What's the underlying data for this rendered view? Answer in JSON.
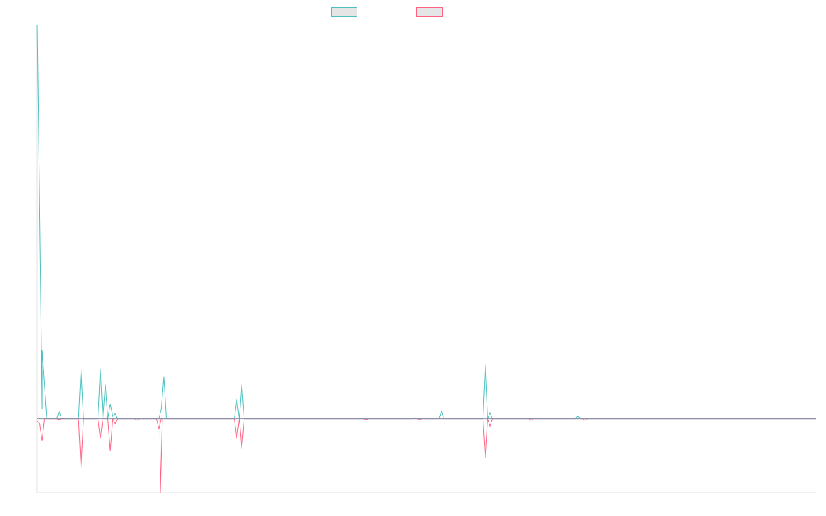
{
  "chart_data": {
    "type": "line",
    "title": "",
    "xlabel": "",
    "ylabel": "",
    "x_range": [
      0,
      160
    ],
    "ylim": [
      -15,
      80
    ],
    "grid": false,
    "legend_position": "top-center",
    "series": [
      {
        "color": "#4bc0c0",
        "points": [
          [
            0,
            80
          ],
          [
            1,
            2
          ],
          [
            1,
            14
          ],
          [
            2,
            0
          ],
          [
            4,
            0
          ],
          [
            4.5,
            1.5
          ],
          [
            5,
            0
          ],
          [
            8.5,
            0
          ],
          [
            9,
            10
          ],
          [
            9.5,
            0
          ],
          [
            12.5,
            0
          ],
          [
            13,
            10
          ],
          [
            13.5,
            0
          ],
          [
            14,
            7
          ],
          [
            14.5,
            0
          ],
          [
            15,
            3
          ],
          [
            15.5,
            0.5
          ],
          [
            16,
            1
          ],
          [
            16.5,
            0
          ],
          [
            25,
            0
          ],
          [
            25.5,
            2
          ],
          [
            26,
            8.5
          ],
          [
            26.5,
            0
          ],
          [
            40.5,
            0
          ],
          [
            41,
            4
          ],
          [
            41.5,
            0
          ],
          [
            42,
            7
          ],
          [
            42.5,
            0
          ],
          [
            77,
            0
          ],
          [
            77.5,
            0.2
          ],
          [
            78,
            0
          ],
          [
            82.5,
            0
          ],
          [
            83,
            1.5
          ],
          [
            83.5,
            0
          ],
          [
            91.5,
            0
          ],
          [
            92,
            11
          ],
          [
            92.5,
            0
          ],
          [
            93,
            1.2
          ],
          [
            93.5,
            0
          ],
          [
            110.5,
            0
          ],
          [
            111,
            0.6
          ],
          [
            111.5,
            0
          ],
          [
            160,
            0
          ]
        ]
      },
      {
        "color": "#ff6384",
        "points": [
          [
            0,
            -0.5
          ],
          [
            0.5,
            -1
          ],
          [
            1,
            -4.5
          ],
          [
            1.5,
            0
          ],
          [
            4,
            0
          ],
          [
            4.5,
            -0.2
          ],
          [
            5,
            0
          ],
          [
            8.5,
            0
          ],
          [
            9,
            -10
          ],
          [
            9.5,
            0
          ],
          [
            12.5,
            0
          ],
          [
            13,
            -4
          ],
          [
            13.5,
            0
          ],
          [
            14.5,
            0
          ],
          [
            15,
            -6.5
          ],
          [
            15.5,
            0
          ],
          [
            16,
            -1
          ],
          [
            16.5,
            0
          ],
          [
            20,
            0
          ],
          [
            20.5,
            -0.3
          ],
          [
            21,
            0
          ],
          [
            24.5,
            0
          ],
          [
            25,
            -2
          ],
          [
            25.5,
            0
          ],
          [
            25.2,
            0
          ],
          [
            25.3,
            -15
          ],
          [
            25.7,
            0
          ],
          [
            40.5,
            0
          ],
          [
            41,
            -4
          ],
          [
            41.5,
            0
          ],
          [
            42,
            -6
          ],
          [
            42.5,
            0
          ],
          [
            67,
            0
          ],
          [
            67.5,
            -0.2
          ],
          [
            68,
            0
          ],
          [
            78,
            0
          ],
          [
            78.5,
            -0.2
          ],
          [
            79,
            0
          ],
          [
            91.5,
            0
          ],
          [
            92,
            -8
          ],
          [
            92.5,
            0
          ],
          [
            93,
            -1.5
          ],
          [
            93.5,
            0
          ],
          [
            101,
            0
          ],
          [
            101.5,
            -0.3
          ],
          [
            102,
            0
          ],
          [
            112,
            0
          ],
          [
            112.5,
            -0.3
          ],
          [
            113,
            0
          ],
          [
            160,
            0
          ]
        ]
      }
    ]
  }
}
